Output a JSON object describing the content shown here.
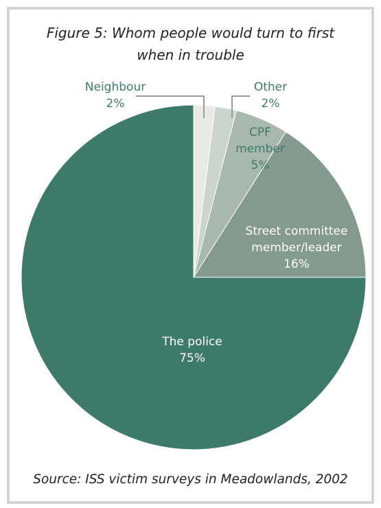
{
  "chart_data": {
    "type": "pie",
    "title_lines": [
      "Figure 5: Whom people would turn to first",
      "when in trouble"
    ],
    "source": "Source: ISS victim surveys in Meadowlands, 2002",
    "slices": [
      {
        "label_lines": [
          "Neighbour"
        ],
        "value_label": "2%",
        "value": 2,
        "color": "#e9e9e6",
        "label_color": "#3f7a6c"
      },
      {
        "label_lines": [
          "Other"
        ],
        "value_label": "2%",
        "value": 2,
        "color": "#ccd4cf",
        "label_color": "#3f7a6c"
      },
      {
        "label_lines": [
          "CPF",
          "member"
        ],
        "value_label": "5%",
        "value": 5,
        "color": "#a8b8ae",
        "label_color": "#3f7a6c"
      },
      {
        "label_lines": [
          "Street committee",
          "member/leader"
        ],
        "value_label": "16%",
        "value": 16,
        "color": "#859a8f",
        "label_color": "#ffffff"
      },
      {
        "label_lines": [
          "The police"
        ],
        "value_label": "75%",
        "value": 75,
        "color": "#3d7a6a",
        "label_color": "#ffffff"
      }
    ],
    "legend": "none"
  }
}
